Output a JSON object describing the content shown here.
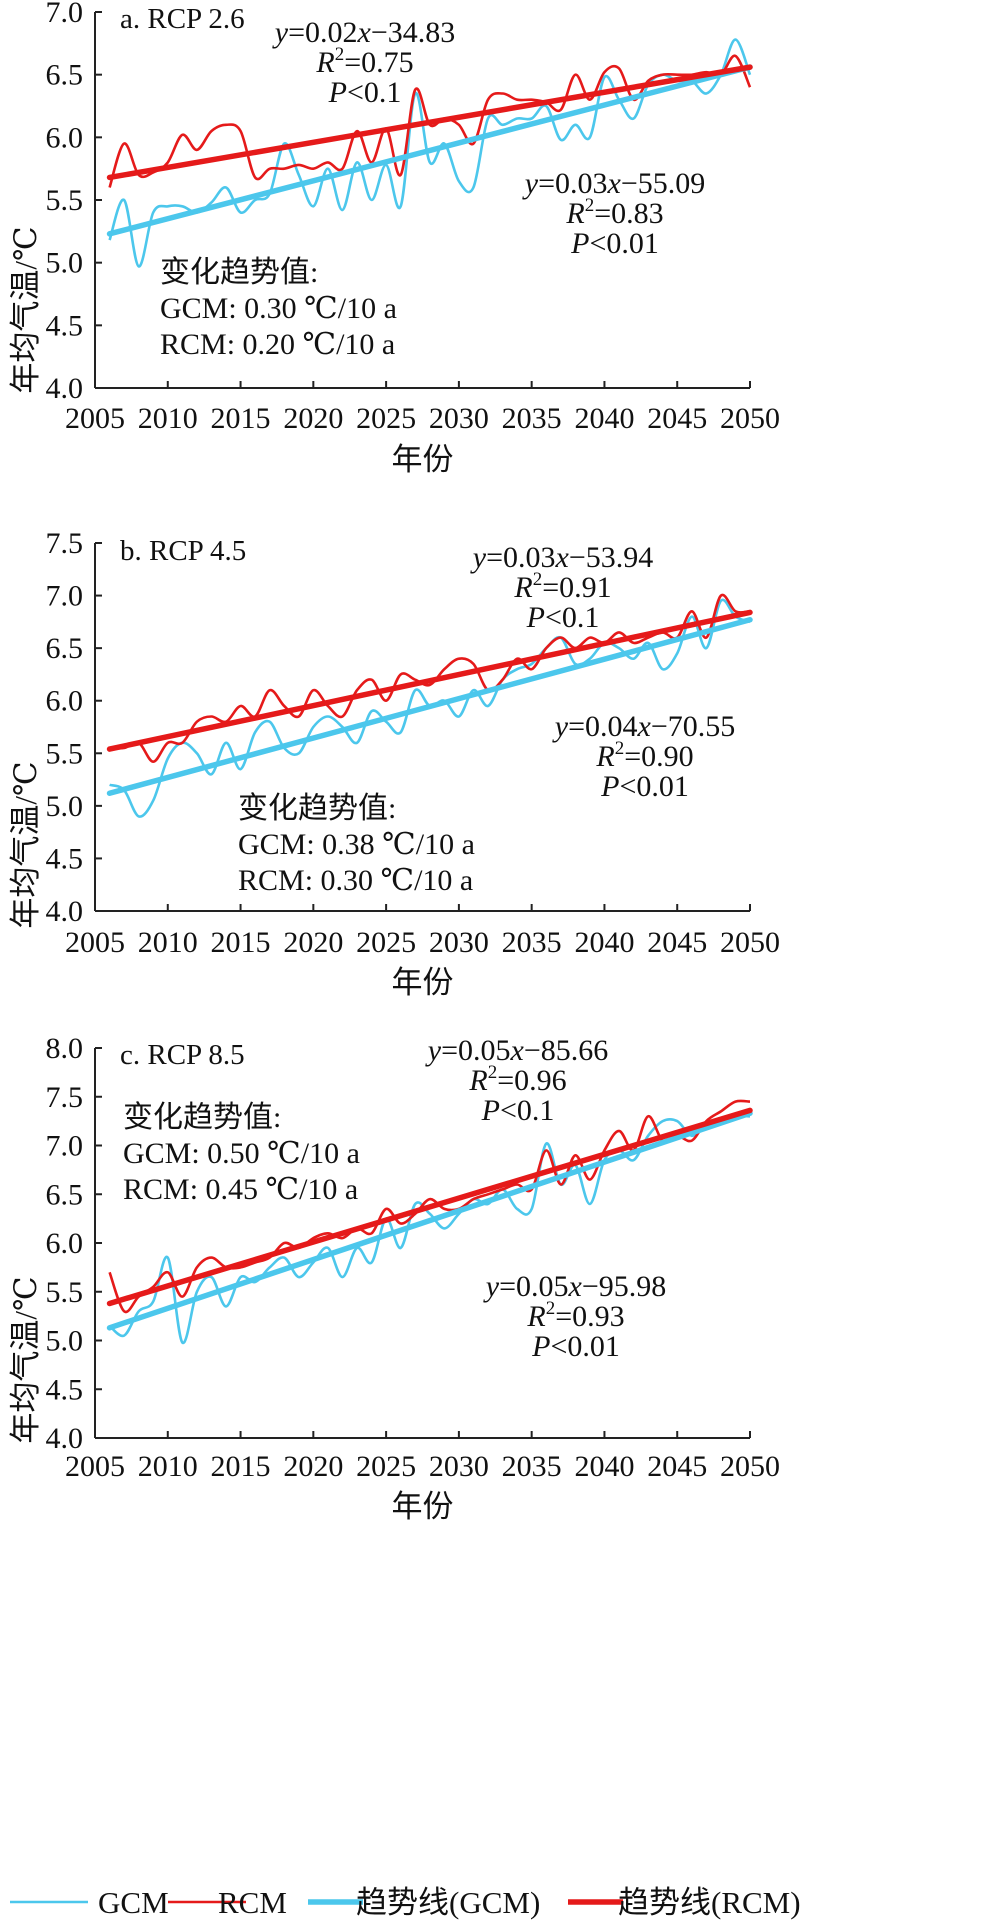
{
  "colors": {
    "gcm": "#4cc7ec",
    "rcm": "#e51a1a",
    "axis": "#222222"
  },
  "legend": [
    {
      "label": "GCM",
      "color": "#4cc7ec",
      "style": "thin"
    },
    {
      "label": "RCM",
      "color": "#e51a1a",
      "style": "thin"
    },
    {
      "label": "趋势线(GCM)",
      "color": "#4cc7ec",
      "style": "thick"
    },
    {
      "label": "趋势线(RCM)",
      "color": "#e51a1a",
      "style": "thick"
    }
  ],
  "chart_data": [
    {
      "type": "line",
      "title": "a. RCP 2.6",
      "xlabel": "年份",
      "ylabel": "年均气温/℃",
      "xlim": [
        2005,
        2050
      ],
      "ylim": [
        4.0,
        7.0
      ],
      "xticks": [
        "2005",
        "2010",
        "2015",
        "2020",
        "2025",
        "2030",
        "2035",
        "2040",
        "2045",
        "2050"
      ],
      "yticks": [
        "4.0",
        "4.5",
        "5.0",
        "5.5",
        "6.0",
        "6.5",
        "7.0"
      ],
      "x": [
        2006,
        2007,
        2008,
        2009,
        2010,
        2011,
        2012,
        2013,
        2014,
        2015,
        2016,
        2017,
        2018,
        2019,
        2020,
        2021,
        2022,
        2023,
        2024,
        2025,
        2026,
        2027,
        2028,
        2029,
        2030,
        2031,
        2032,
        2033,
        2034,
        2035,
        2036,
        2037,
        2038,
        2039,
        2040,
        2041,
        2042,
        2043,
        2044,
        2045,
        2046,
        2047,
        2048,
        2049,
        2050
      ],
      "series": [
        {
          "name": "GCM",
          "values": [
            5.18,
            5.5,
            4.97,
            5.4,
            5.45,
            5.45,
            5.4,
            5.48,
            5.6,
            5.4,
            5.5,
            5.55,
            5.95,
            5.7,
            5.45,
            5.75,
            5.42,
            5.8,
            5.5,
            5.78,
            5.45,
            6.35,
            5.8,
            5.95,
            5.65,
            5.6,
            6.15,
            6.1,
            6.15,
            6.15,
            6.25,
            5.98,
            6.1,
            6.0,
            6.48,
            6.3,
            6.15,
            6.42,
            6.5,
            6.45,
            6.45,
            6.35,
            6.5,
            6.78,
            6.5
          ]
        },
        {
          "name": "RCM",
          "values": [
            5.6,
            5.95,
            5.7,
            5.72,
            5.8,
            6.02,
            5.9,
            6.05,
            6.1,
            6.05,
            5.68,
            5.75,
            5.75,
            5.78,
            5.75,
            5.8,
            5.75,
            6.05,
            5.8,
            6.07,
            5.7,
            6.38,
            6.1,
            6.15,
            6.1,
            5.95,
            6.3,
            6.35,
            6.3,
            6.3,
            6.28,
            6.22,
            6.5,
            6.3,
            6.52,
            6.55,
            6.3,
            6.45,
            6.5,
            6.5,
            6.5,
            6.52,
            6.5,
            6.65,
            6.4
          ]
        }
      ],
      "trends": [
        {
          "name": "趋势线(GCM)",
          "from": [
            2006,
            5.23
          ],
          "to": [
            2050,
            6.56
          ]
        },
        {
          "name": "趋势线(RCM)",
          "from": [
            2006,
            5.68
          ],
          "to": [
            2050,
            6.56
          ]
        }
      ],
      "equations": [
        {
          "lines": [
            "y=0.02x−34.83",
            "R2=0.75",
            "P<0.1"
          ]
        },
        {
          "lines": [
            "y=0.03x−55.09",
            "R2=0.83",
            "P<0.01"
          ]
        }
      ],
      "note": {
        "heading": "变化趋势值:",
        "lines": [
          "GCM: 0.30 ℃/10 a",
          "RCM: 0.20 ℃/10 a"
        ]
      }
    },
    {
      "type": "line",
      "title": "b. RCP 4.5",
      "xlabel": "年份",
      "ylabel": "年均气温/℃",
      "xlim": [
        2005,
        2050
      ],
      "ylim": [
        4.0,
        7.5
      ],
      "xticks": [
        "2005",
        "2010",
        "2015",
        "2020",
        "2025",
        "2030",
        "2035",
        "2040",
        "2045",
        "2050"
      ],
      "yticks": [
        "4.0",
        "4.5",
        "5.0",
        "5.5",
        "6.0",
        "6.5",
        "7.0",
        "7.5"
      ],
      "x": [
        2006,
        2007,
        2008,
        2009,
        2010,
        2011,
        2012,
        2013,
        2014,
        2015,
        2016,
        2017,
        2018,
        2019,
        2020,
        2021,
        2022,
        2023,
        2024,
        2025,
        2026,
        2027,
        2028,
        2029,
        2030,
        2031,
        2032,
        2033,
        2034,
        2035,
        2036,
        2037,
        2038,
        2039,
        2040,
        2041,
        2042,
        2043,
        2044,
        2045,
        2046,
        2047,
        2048,
        2049,
        2050
      ],
      "series": [
        {
          "name": "GCM",
          "values": [
            5.2,
            5.15,
            4.9,
            5.05,
            5.45,
            5.6,
            5.5,
            5.3,
            5.6,
            5.35,
            5.7,
            5.8,
            5.55,
            5.5,
            5.75,
            5.85,
            5.75,
            5.6,
            5.9,
            5.8,
            5.7,
            6.1,
            5.95,
            6.0,
            5.85,
            6.1,
            5.95,
            6.2,
            6.3,
            6.35,
            6.5,
            6.6,
            6.35,
            6.4,
            6.55,
            6.5,
            6.4,
            6.55,
            6.3,
            6.45,
            6.8,
            6.5,
            6.95,
            6.8,
            6.75
          ]
        },
        {
          "name": "RCM",
          "values": [
            5.55,
            5.55,
            5.6,
            5.42,
            5.6,
            5.6,
            5.8,
            5.85,
            5.8,
            5.95,
            5.85,
            6.1,
            5.95,
            5.85,
            6.1,
            5.95,
            5.85,
            6.1,
            6.2,
            6.0,
            6.25,
            6.2,
            6.15,
            6.3,
            6.4,
            6.35,
            6.1,
            6.2,
            6.4,
            6.3,
            6.5,
            6.6,
            6.5,
            6.6,
            6.55,
            6.65,
            6.55,
            6.6,
            6.65,
            6.6,
            6.85,
            6.6,
            7.0,
            6.85,
            6.85
          ]
        }
      ],
      "trends": [
        {
          "name": "趋势线(GCM)",
          "from": [
            2006,
            5.12
          ],
          "to": [
            2050,
            6.77
          ]
        },
        {
          "name": "趋势线(RCM)",
          "from": [
            2006,
            5.54
          ],
          "to": [
            2050,
            6.84
          ]
        }
      ],
      "equations": [
        {
          "lines": [
            "y=0.03x−53.94",
            "R2=0.91",
            "P<0.1"
          ]
        },
        {
          "lines": [
            "y=0.04x−70.55",
            "R2=0.90",
            "P<0.01"
          ]
        }
      ],
      "note": {
        "heading": "变化趋势值:",
        "lines": [
          "GCM: 0.38 ℃/10 a",
          "RCM: 0.30 ℃/10 a"
        ]
      }
    },
    {
      "type": "line",
      "title": "c. RCP 8.5",
      "xlabel": "年份",
      "ylabel": "年均气温/℃",
      "xlim": [
        2005,
        2050
      ],
      "ylim": [
        4.0,
        8.0
      ],
      "xticks": [
        "2005",
        "2010",
        "2015",
        "2020",
        "2025",
        "2030",
        "2035",
        "2040",
        "2045",
        "2050"
      ],
      "yticks": [
        "4.0",
        "4.5",
        "5.0",
        "5.5",
        "6.0",
        "6.5",
        "7.0",
        "7.5",
        "8.0"
      ],
      "x": [
        2006,
        2007,
        2008,
        2009,
        2010,
        2011,
        2012,
        2013,
        2014,
        2015,
        2016,
        2017,
        2018,
        2019,
        2020,
        2021,
        2022,
        2023,
        2024,
        2025,
        2026,
        2027,
        2028,
        2029,
        2030,
        2031,
        2032,
        2033,
        2034,
        2035,
        2036,
        2037,
        2038,
        2039,
        2040,
        2041,
        2042,
        2043,
        2044,
        2045,
        2046,
        2047,
        2048,
        2049,
        2050
      ],
      "series": [
        {
          "name": "GCM",
          "values": [
            5.15,
            5.05,
            5.3,
            5.4,
            5.85,
            4.98,
            5.5,
            5.65,
            5.35,
            5.65,
            5.6,
            5.75,
            5.85,
            5.65,
            5.8,
            5.95,
            5.65,
            5.95,
            5.8,
            6.25,
            5.95,
            6.4,
            6.3,
            6.15,
            6.3,
            6.45,
            6.4,
            6.55,
            6.35,
            6.35,
            7.02,
            6.6,
            6.8,
            6.4,
            6.85,
            6.95,
            6.85,
            7.1,
            7.25,
            7.25,
            7.1,
            7.2,
            7.25,
            7.3,
            7.3
          ]
        },
        {
          "name": "RCM",
          "values": [
            5.7,
            5.3,
            5.45,
            5.55,
            5.7,
            5.45,
            5.75,
            5.85,
            5.75,
            5.75,
            5.8,
            5.85,
            6.0,
            5.95,
            6.05,
            6.1,
            6.05,
            6.15,
            6.1,
            6.35,
            6.2,
            6.3,
            6.45,
            6.35,
            6.35,
            6.45,
            6.5,
            6.55,
            6.6,
            6.55,
            6.95,
            6.6,
            6.9,
            6.65,
            6.95,
            7.15,
            6.95,
            7.3,
            7.05,
            7.1,
            7.05,
            7.25,
            7.35,
            7.45,
            7.45
          ]
        }
      ],
      "trends": [
        {
          "name": "趋势线(GCM)",
          "from": [
            2006,
            5.13
          ],
          "to": [
            2050,
            7.33
          ]
        },
        {
          "name": "趋势线(RCM)",
          "from": [
            2006,
            5.38
          ],
          "to": [
            2050,
            7.36
          ]
        }
      ],
      "equations": [
        {
          "lines": [
            "y=0.05x−85.66",
            "R2=0.96",
            "P<0.1"
          ]
        },
        {
          "lines": [
            "y=0.05x−95.98",
            "R2=0.93",
            "P<0.01"
          ]
        }
      ],
      "note": {
        "heading": "变化趋势值:",
        "lines": [
          "GCM: 0.50 ℃/10 a",
          "RCM: 0.45 ℃/10 a"
        ]
      }
    }
  ]
}
